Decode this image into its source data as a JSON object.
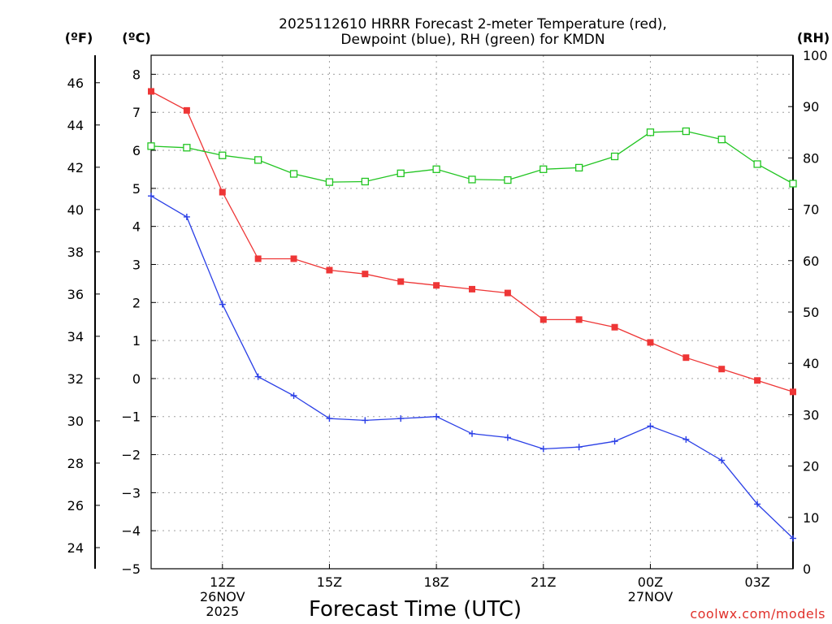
{
  "chart_data": {
    "type": "line",
    "title_lines": [
      "2025112610 HRRR Forecast 2-meter Temperature (red),",
      "Dewpoint (blue), RH (green) for KMDN"
    ],
    "xlabel": "Forecast Time (UTC)",
    "credit": "coolwx.com/models",
    "units": {
      "fahrenheit": "(ºF)",
      "celsius": "(ºC)",
      "rh": "(RH)"
    },
    "x_hours": [
      10,
      11,
      12,
      13,
      14,
      15,
      16,
      17,
      18,
      19,
      20,
      21,
      22,
      23,
      24,
      25,
      26,
      27,
      28
    ],
    "xlim": [
      10,
      28
    ],
    "x_ticks": [
      {
        "hour": 12,
        "lines": [
          "12Z",
          "26NOV",
          "2025"
        ]
      },
      {
        "hour": 15,
        "lines": [
          "15Z"
        ]
      },
      {
        "hour": 18,
        "lines": [
          "18Z"
        ]
      },
      {
        "hour": 21,
        "lines": [
          "21Z"
        ]
      },
      {
        "hour": 24,
        "lines": [
          "00Z",
          "27NOV"
        ]
      },
      {
        "hour": 27,
        "lines": [
          "03Z"
        ]
      }
    ],
    "celsius_axis": {
      "min": -5,
      "max": 8.5,
      "ticks": [
        "8",
        "7",
        "6",
        "5",
        "4",
        "3",
        "2",
        "1",
        "0",
        "−1",
        "−2",
        "−3",
        "−4",
        "−5"
      ]
    },
    "fahrenheit_axis": {
      "ticks": [
        "46",
        "44",
        "42",
        "40",
        "38",
        "36",
        "34",
        "32",
        "30",
        "28",
        "26",
        "24"
      ]
    },
    "rh_axis": {
      "min": 0,
      "max": 100,
      "ticks": [
        "100",
        "90",
        "80",
        "70",
        "60",
        "50",
        "40",
        "30",
        "20",
        "10",
        "0"
      ]
    },
    "series": [
      {
        "name": "Temperature",
        "unit": "°C",
        "color": "#ee3636",
        "marker": "filled-square",
        "values": [
          7.55,
          7.05,
          4.9,
          3.15,
          3.15,
          2.85,
          2.75,
          2.55,
          2.45,
          2.35,
          2.25,
          1.55,
          1.55,
          1.35,
          0.95,
          0.55,
          0.25,
          -0.05,
          -0.35
        ]
      },
      {
        "name": "Dewpoint",
        "unit": "°C",
        "color": "#2a3fe6",
        "marker": "plus",
        "values": [
          4.8,
          4.25,
          1.95,
          0.05,
          -0.45,
          -1.05,
          -1.1,
          -1.05,
          -1.0,
          -1.45,
          -1.55,
          -1.85,
          -1.8,
          -1.65,
          -1.25,
          -1.6,
          -2.15,
          -3.3,
          -4.2
        ]
      },
      {
        "name": "Relative Humidity",
        "unit": "%",
        "color": "#22c522",
        "marker": "open-square",
        "values": [
          82.3,
          82.0,
          80.5,
          79.6,
          76.9,
          75.3,
          75.4,
          77.0,
          77.8,
          75.8,
          75.7,
          77.8,
          78.1,
          80.3,
          85.0,
          85.2,
          83.6,
          78.8,
          75.0
        ]
      }
    ]
  }
}
